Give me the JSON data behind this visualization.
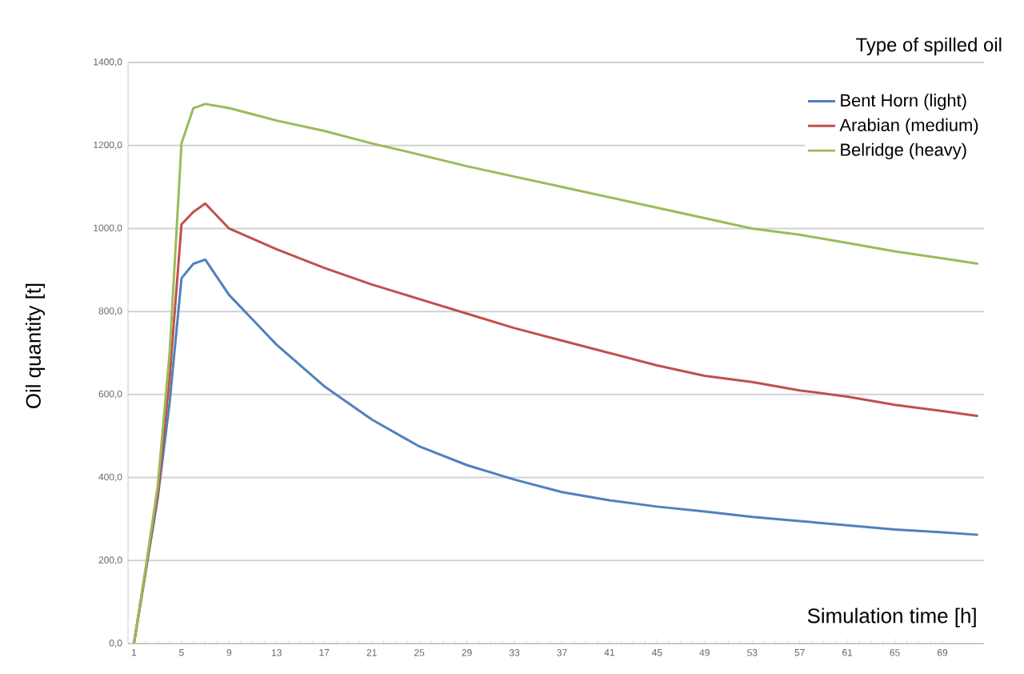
{
  "chart_data": {
    "type": "line",
    "xlabel": "Simulation time [h]",
    "ylabel": "Oil quantity [t]",
    "legend_title": "Type of spilled oil",
    "xlim": [
      0.5,
      72.5
    ],
    "xticks": [
      1,
      5,
      9,
      13,
      17,
      21,
      25,
      29,
      33,
      37,
      41,
      45,
      49,
      53,
      57,
      61,
      65,
      69
    ],
    "ylim": [
      0,
      1400
    ],
    "yticks": [
      {
        "value": 0,
        "label": "0,0"
      },
      {
        "value": 200,
        "label": "200,0"
      },
      {
        "value": 400,
        "label": "400,0"
      },
      {
        "value": 600,
        "label": "600,0"
      },
      {
        "value": 800,
        "label": "800,0"
      },
      {
        "value": 1000,
        "label": "1000,0"
      },
      {
        "value": 1200,
        "label": "1200,0"
      },
      {
        "value": 1400,
        "label": "1400,0"
      }
    ],
    "grid": "y",
    "legend": "top right",
    "marker": "none",
    "line_style": "solid",
    "x": [
      1,
      2,
      3,
      4,
      5,
      6,
      7,
      9,
      11,
      13,
      17,
      21,
      25,
      29,
      33,
      37,
      41,
      45,
      49,
      53,
      57,
      61,
      65,
      69,
      72
    ],
    "series": [
      {
        "name": "Bent Horn (light)",
        "color": "#4f81bd",
        "values": [
          0,
          175,
          350,
          580,
          880,
          915,
          925,
          840,
          780,
          720,
          620,
          540,
          475,
          430,
          395,
          365,
          345,
          330,
          318,
          305,
          295,
          285,
          275,
          268,
          262
        ]
      },
      {
        "name": "Arabian (medium)",
        "color": "#c0504d",
        "values": [
          0,
          180,
          360,
          640,
          1010,
          1040,
          1060,
          1000,
          975,
          950,
          905,
          865,
          830,
          795,
          760,
          730,
          700,
          670,
          645,
          630,
          610,
          595,
          575,
          560,
          548
        ]
      },
      {
        "name": "Belridge (heavy)",
        "color": "#9bbb59",
        "values": [
          0,
          185,
          380,
          700,
          1205,
          1290,
          1300,
          1290,
          1275,
          1260,
          1235,
          1205,
          1178,
          1150,
          1125,
          1100,
          1075,
          1050,
          1025,
          1000,
          985,
          965,
          945,
          928,
          915
        ]
      }
    ]
  }
}
